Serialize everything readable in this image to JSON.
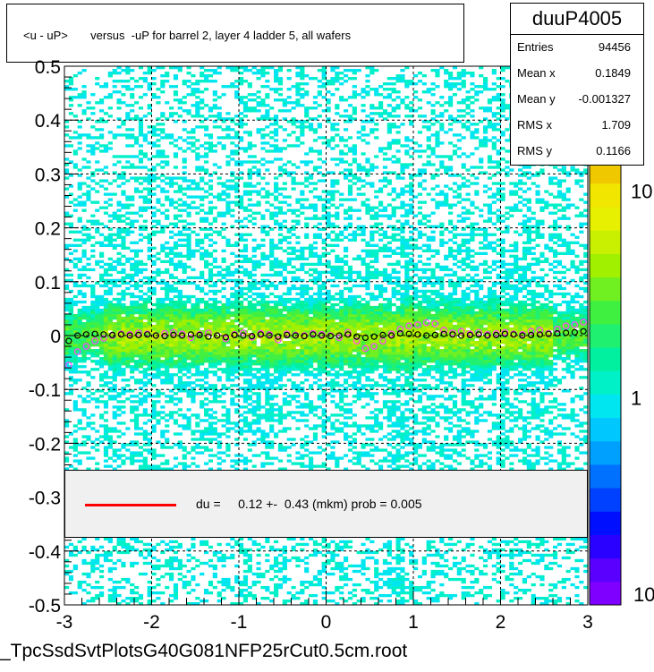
{
  "chart_data": {
    "type": "heatmap",
    "title": "<u - uP>       versus  -uP for barrel 2, layer 4 ladder 5, all wafers",
    "histogram_name": "duuP4005",
    "stats": [
      {
        "label": "Entries",
        "value": "94456"
      },
      {
        "label": "Mean x",
        "value": "0.1849"
      },
      {
        "label": "Mean y",
        "value": "-0.001327"
      },
      {
        "label": "RMS x",
        "value": "1.709"
      },
      {
        "label": "RMS y",
        "value": "0.1166"
      }
    ],
    "xlim": [
      -3,
      3
    ],
    "ylim": [
      -0.5,
      0.5
    ],
    "x_ticks": [
      "-3",
      "-2",
      "-1",
      "0",
      "1",
      "2",
      "3"
    ],
    "y_ticks": [
      "-0.5",
      "-0.4",
      "-0.3",
      "-0.2",
      "-0.1",
      "0",
      "0.1",
      "0.2",
      "0.3",
      "0.4",
      "0.5"
    ],
    "z_scale": "log",
    "z_ticks": [
      "1",
      "10"
    ],
    "z_ticks_edge": "10",
    "grid": true,
    "fit_legend": "du =     0.12 +-  0.43 (mkm) prob = 0.005",
    "profile_x": [
      -2.95,
      -2.85,
      -2.75,
      -2.65,
      -2.55,
      -2.45,
      -2.35,
      -2.25,
      -2.15,
      -2.05,
      -1.95,
      -1.85,
      -1.75,
      -1.65,
      -1.55,
      -1.45,
      -1.35,
      -1.25,
      -1.15,
      -1.05,
      -0.95,
      -0.85,
      -0.75,
      -0.65,
      -0.55,
      -0.45,
      -0.35,
      -0.25,
      -0.15,
      -0.05,
      0.05,
      0.15,
      0.25,
      0.35,
      0.45,
      0.55,
      0.65,
      0.75,
      0.85,
      0.95,
      1.05,
      1.15,
      1.25,
      1.35,
      1.45,
      1.55,
      1.65,
      1.75,
      1.85,
      1.95,
      2.05,
      2.15,
      2.25,
      2.35,
      2.45,
      2.55,
      2.65,
      2.75,
      2.85,
      2.95
    ],
    "profile_y": [
      -0.01,
      0.0,
      0.002,
      0.003,
      0.002,
      0.001,
      0.002,
      0.0,
      0.001,
      0.002,
      0.0,
      -0.001,
      0.001,
      0.0,
      0.002,
      0.001,
      -0.002,
      0.0,
      -0.003,
      0.001,
      0.0,
      -0.001,
      0.002,
      0.0,
      -0.002,
      0.001,
      0.0,
      -0.001,
      0.002,
      0.0,
      -0.001,
      0.0,
      0.002,
      -0.002,
      -0.004,
      -0.002,
      0.001,
      0.0,
      0.004,
      0.003,
      0.002,
      0.0,
      0.001,
      0.003,
      0.002,
      0.0,
      0.001,
      0.002,
      0.0,
      0.001,
      0.003,
      0.002,
      0.0,
      0.001,
      0.002,
      0.003,
      0.004,
      0.005,
      0.006,
      0.008
    ],
    "profile2_x": [
      -2.95,
      -2.85,
      -2.75,
      -2.65,
      -2.55,
      -2.45,
      -2.35,
      -2.25,
      -2.15,
      -2.05,
      -1.95,
      -1.85,
      -1.75,
      -1.65,
      -1.55,
      -1.45,
      -1.35,
      -1.25,
      -1.15,
      -1.05,
      -0.95,
      -0.85,
      -0.75,
      -0.65,
      -0.55,
      -0.45,
      -0.35,
      -0.25,
      -0.15,
      -0.05,
      0.05,
      0.15,
      0.25,
      0.35,
      0.45,
      0.55,
      0.65,
      0.75,
      0.85,
      0.95,
      1.05,
      1.15,
      1.25,
      1.35,
      1.45,
      1.55,
      1.65,
      1.75,
      1.85,
      1.95,
      2.05,
      2.15,
      2.25,
      2.35,
      2.45,
      2.55,
      2.65,
      2.75,
      2.85,
      2.95
    ],
    "profile2_y": [
      -0.055,
      -0.03,
      -0.02,
      -0.01,
      -0.005,
      0.0,
      0.003,
      0.002,
      0.005,
      0.003,
      0.0,
      0.004,
      0.006,
      0.003,
      -0.004,
      0.002,
      0.005,
      0.0,
      -0.006,
      0.002,
      0.005,
      -0.003,
      0.004,
      0.002,
      -0.008,
      0.003,
      0.001,
      0.0,
      0.004,
      0.002,
      0.0,
      -0.004,
      0.006,
      -0.01,
      -0.024,
      -0.02,
      -0.01,
      0.003,
      0.012,
      0.018,
      0.02,
      0.024,
      0.022,
      0.01,
      0.005,
      0.008,
      0.003,
      0.006,
      0.002,
      0.004,
      0.006,
      0.003,
      0.002,
      0.008,
      0.01,
      0.004,
      0.012,
      0.018,
      0.02,
      0.025
    ]
  },
  "footer": "_TpcSsdSvtPlotsG40G081NFP25rCut0.5cm.root",
  "colors": {
    "palette": [
      "#7f00ff",
      "#5a00ff",
      "#2a00ff",
      "#0010ff",
      "#0040ff",
      "#0070ff",
      "#00a0ff",
      "#00c8ff",
      "#00e6f0",
      "#00f0c8",
      "#00f0a0",
      "#20f070",
      "#40f040",
      "#70f020",
      "#a0f000",
      "#c8f000",
      "#e6f000",
      "#f0e600",
      "#f0c800",
      "#ffa000",
      "#ff7000",
      "#ff4000",
      "#ff0000"
    ],
    "profile": "#000000",
    "profile2": "#ff44ff",
    "fit": "#ff0000"
  }
}
